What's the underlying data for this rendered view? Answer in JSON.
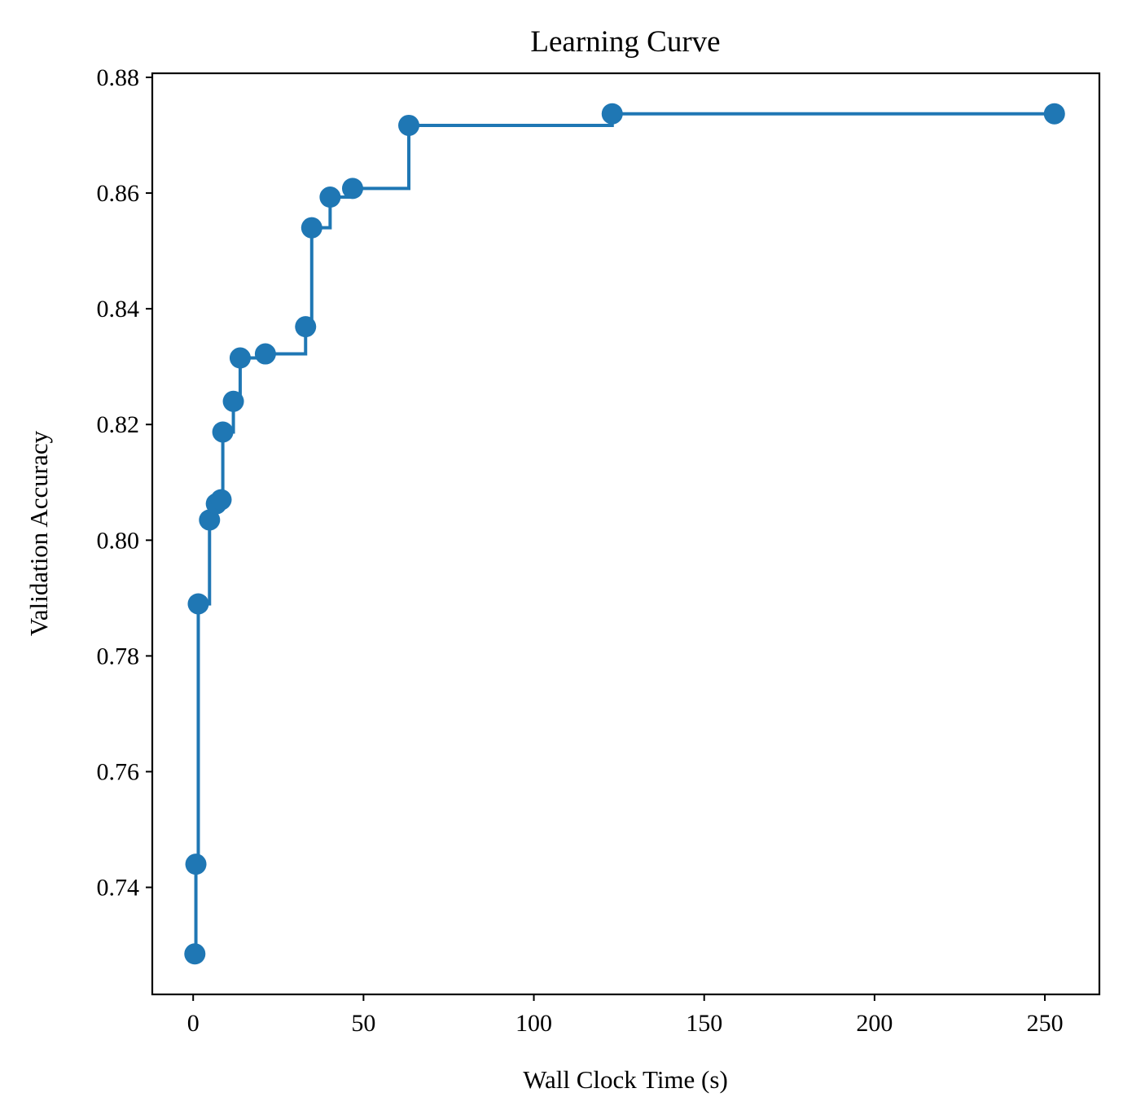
{
  "chart_data": {
    "type": "line",
    "title": "Learning Curve",
    "xlabel": "Wall Clock Time (s)",
    "ylabel": "Validation Accuracy",
    "xlim": [
      -12,
      266
    ],
    "ylim": [
      0.7215,
      0.8807
    ],
    "x_ticks": [
      0,
      50,
      100,
      150,
      200,
      250
    ],
    "x_tick_labels": [
      "0",
      "50",
      "100",
      "150",
      "200",
      "250"
    ],
    "y_ticks": [
      0.74,
      0.76,
      0.78,
      0.8,
      0.82,
      0.84,
      0.86,
      0.88
    ],
    "y_tick_labels": [
      "0.74",
      "0.76",
      "0.78",
      "0.80",
      "0.82",
      "0.84",
      "0.86",
      "0.88"
    ],
    "grid": false,
    "step": "post",
    "series": [
      {
        "color": "#1f77b4",
        "marker": "circle",
        "points": [
          {
            "x": 0.5,
            "y": 0.7285
          },
          {
            "x": 0.8,
            "y": 0.744
          },
          {
            "x": 1.5,
            "y": 0.789
          },
          {
            "x": 4.8,
            "y": 0.8035
          },
          {
            "x": 6.8,
            "y": 0.8063
          },
          {
            "x": 8.2,
            "y": 0.807
          },
          {
            "x": 8.7,
            "y": 0.8187
          },
          {
            "x": 11.8,
            "y": 0.824
          },
          {
            "x": 13.8,
            "y": 0.8315
          },
          {
            "x": 21.2,
            "y": 0.8322
          },
          {
            "x": 33.0,
            "y": 0.8369
          },
          {
            "x": 34.8,
            "y": 0.854
          },
          {
            "x": 40.2,
            "y": 0.8593
          },
          {
            "x": 46.8,
            "y": 0.8608
          },
          {
            "x": 63.3,
            "y": 0.8717
          },
          {
            "x": 123.0,
            "y": 0.8737
          },
          {
            "x": 252.8,
            "y": 0.8737
          }
        ]
      }
    ]
  }
}
